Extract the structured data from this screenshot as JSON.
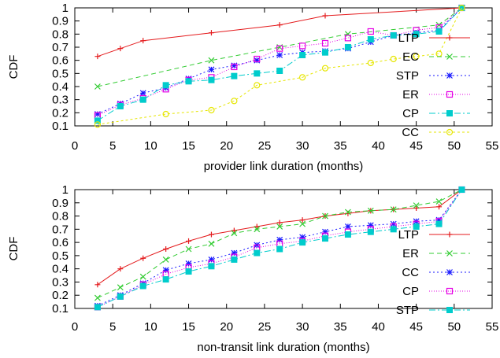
{
  "chart_data": [
    {
      "type": "line",
      "xlabel": "provider link duration (months)",
      "ylabel": "CDF",
      "xlim": [
        0,
        55
      ],
      "ylim": [
        0.1,
        1
      ],
      "xticks": [
        "0",
        "5",
        "10",
        "15",
        "20",
        "25",
        "30",
        "35",
        "40",
        "45",
        "50",
        "55"
      ],
      "yticks": [
        "0.1",
        "0.2",
        "0.3",
        "0.4",
        "0.5",
        "0.6",
        "0.7",
        "0.8",
        "0.9",
        "1"
      ],
      "grid": false,
      "legend_position": "right",
      "series": [
        {
          "name": "LTP",
          "color": "#e41a1c",
          "marker": "plus",
          "dash": "",
          "x": [
            3,
            6,
            9,
            18,
            27,
            33,
            51
          ],
          "y": [
            0.63,
            0.69,
            0.75,
            0.81,
            0.87,
            0.94,
            1.0
          ]
        },
        {
          "name": "EC",
          "color": "#33cc33",
          "marker": "x",
          "dash": "6,4",
          "x": [
            3,
            18,
            27,
            36,
            48,
            51
          ],
          "y": [
            0.4,
            0.6,
            0.7,
            0.8,
            0.87,
            1.0
          ]
        },
        {
          "name": "STP",
          "color": "#1a1aff",
          "marker": "star",
          "dash": "2,3",
          "x": [
            3,
            6,
            9,
            12,
            15,
            18,
            21,
            24,
            27,
            30,
            33,
            36,
            39,
            42,
            45,
            48,
            51
          ],
          "y": [
            0.19,
            0.27,
            0.35,
            0.39,
            0.46,
            0.53,
            0.56,
            0.6,
            0.64,
            0.66,
            0.67,
            0.69,
            0.74,
            0.79,
            0.81,
            0.83,
            1.0
          ]
        },
        {
          "name": "ER",
          "color": "#e600e6",
          "marker": "square-open",
          "dash": "1,2",
          "x": [
            3,
            6,
            9,
            12,
            15,
            18,
            21,
            24,
            27,
            30,
            33,
            36,
            39,
            42,
            45,
            48,
            51
          ],
          "y": [
            0.18,
            0.26,
            0.31,
            0.38,
            0.45,
            0.47,
            0.55,
            0.61,
            0.69,
            0.71,
            0.73,
            0.77,
            0.82,
            0.79,
            0.83,
            0.85,
            1.0
          ]
        },
        {
          "name": "CP",
          "color": "#00cccc",
          "marker": "square-filled",
          "dash": "8,3,2,3",
          "x": [
            3,
            6,
            9,
            12,
            15,
            18,
            21,
            24,
            27,
            30,
            33,
            36,
            39,
            42,
            45,
            48,
            51
          ],
          "y": [
            0.14,
            0.25,
            0.3,
            0.41,
            0.44,
            0.45,
            0.48,
            0.5,
            0.52,
            0.64,
            0.66,
            0.7,
            0.76,
            0.79,
            0.8,
            0.82,
            1.0
          ]
        },
        {
          "name": "CC",
          "color": "#e6e600",
          "marker": "circle-open",
          "dash": "3,3",
          "x": [
            3,
            12,
            18,
            21,
            24,
            30,
            33,
            39,
            42,
            45,
            48,
            51
          ],
          "y": [
            0.11,
            0.19,
            0.22,
            0.29,
            0.41,
            0.47,
            0.54,
            0.58,
            0.61,
            0.63,
            0.65,
            1.0
          ]
        }
      ]
    },
    {
      "type": "line",
      "xlabel": "non-transit link duration (months)",
      "ylabel": "CDF",
      "xlim": [
        0,
        55
      ],
      "ylim": [
        0.1,
        1
      ],
      "xticks": [
        "0",
        "5",
        "10",
        "15",
        "20",
        "25",
        "30",
        "35",
        "40",
        "45",
        "50",
        "55"
      ],
      "yticks": [
        "0.1",
        "0.2",
        "0.3",
        "0.4",
        "0.5",
        "0.6",
        "0.7",
        "0.8",
        "0.9",
        "1"
      ],
      "grid": false,
      "legend_position": "right",
      "series": [
        {
          "name": "LTP",
          "color": "#e41a1c",
          "marker": "plus",
          "dash": "",
          "x": [
            3,
            6,
            9,
            12,
            15,
            18,
            21,
            24,
            27,
            30,
            33,
            36,
            39,
            42,
            45,
            48,
            51
          ],
          "y": [
            0.28,
            0.4,
            0.48,
            0.55,
            0.61,
            0.66,
            0.69,
            0.72,
            0.75,
            0.77,
            0.8,
            0.82,
            0.84,
            0.85,
            0.86,
            0.87,
            1.0
          ]
        },
        {
          "name": "ER",
          "color": "#33cc33",
          "marker": "x",
          "dash": "6,4",
          "x": [
            3,
            6,
            9,
            12,
            15,
            18,
            21,
            24,
            27,
            30,
            33,
            36,
            39,
            42,
            45,
            48,
            51
          ],
          "y": [
            0.18,
            0.26,
            0.34,
            0.47,
            0.55,
            0.59,
            0.67,
            0.7,
            0.72,
            0.74,
            0.8,
            0.83,
            0.84,
            0.85,
            0.88,
            0.91,
            1.0
          ]
        },
        {
          "name": "CC",
          "color": "#1a1aff",
          "marker": "star",
          "dash": "2,3",
          "x": [
            3,
            6,
            9,
            12,
            15,
            18,
            21,
            24,
            27,
            30,
            33,
            36,
            39,
            42,
            45,
            48,
            51
          ],
          "y": [
            0.12,
            0.2,
            0.29,
            0.39,
            0.44,
            0.47,
            0.52,
            0.58,
            0.62,
            0.64,
            0.68,
            0.72,
            0.73,
            0.74,
            0.76,
            0.77,
            1.0
          ]
        },
        {
          "name": "CP",
          "color": "#e600e6",
          "marker": "square-open",
          "dash": "1,2",
          "x": [
            3,
            6,
            9,
            12,
            15,
            18,
            21,
            24,
            27,
            30,
            33,
            36,
            39,
            42,
            45,
            48,
            51
          ],
          "y": [
            0.11,
            0.19,
            0.28,
            0.36,
            0.41,
            0.44,
            0.49,
            0.56,
            0.59,
            0.61,
            0.65,
            0.68,
            0.7,
            0.72,
            0.74,
            0.76,
            1.0
          ]
        },
        {
          "name": "STP",
          "color": "#00cccc",
          "marker": "square-filled",
          "dash": "8,3,2,3",
          "x": [
            3,
            6,
            9,
            12,
            15,
            18,
            21,
            24,
            27,
            30,
            33,
            36,
            39,
            42,
            45,
            48,
            51
          ],
          "y": [
            0.11,
            0.19,
            0.27,
            0.32,
            0.38,
            0.42,
            0.47,
            0.52,
            0.55,
            0.6,
            0.63,
            0.66,
            0.68,
            0.7,
            0.72,
            0.74,
            1.0
          ]
        }
      ]
    }
  ]
}
